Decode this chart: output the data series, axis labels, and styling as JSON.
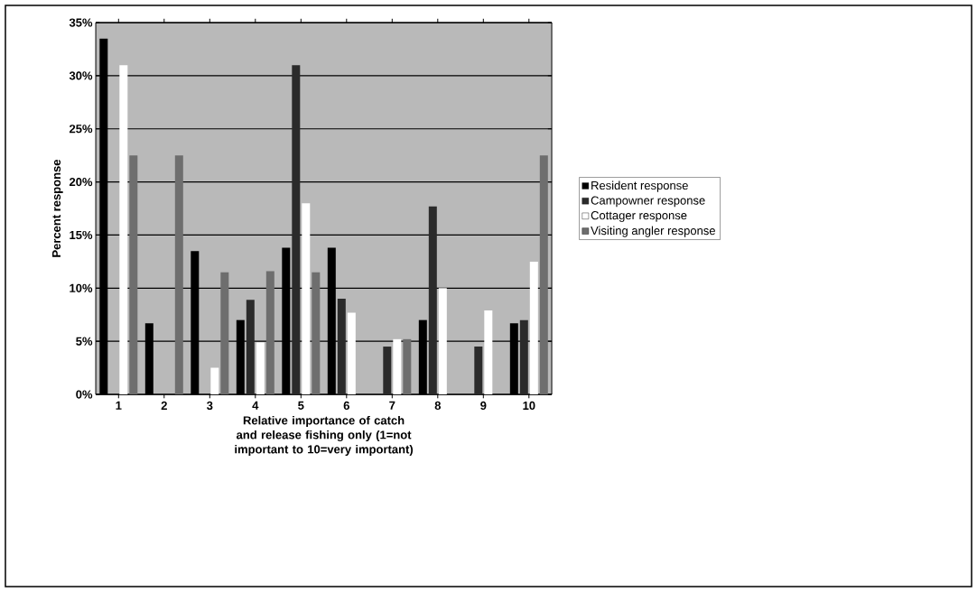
{
  "chart_data": {
    "type": "bar",
    "categories": [
      "1",
      "2",
      "3",
      "4",
      "5",
      "6",
      "7",
      "8",
      "9",
      "10"
    ],
    "series": [
      {
        "name": "Resident response",
        "color": "#000000",
        "values": [
          33.5,
          6.7,
          13.5,
          7.0,
          13.8,
          13.8,
          0,
          7.0,
          0,
          6.7
        ]
      },
      {
        "name": "Campowner response",
        "color": "#2b2b2b",
        "values": [
          0,
          0,
          0,
          8.9,
          31.0,
          9.0,
          4.5,
          17.7,
          4.5,
          7.0
        ]
      },
      {
        "name": "Cottager response",
        "color": "#ffffff",
        "values": [
          31.0,
          0,
          2.5,
          4.9,
          18.0,
          7.7,
          5.2,
          10.0,
          7.9,
          12.5
        ]
      },
      {
        "name": "Visiting angler response",
        "color": "#6e6e6e",
        "values": [
          22.5,
          22.5,
          11.5,
          11.6,
          11.5,
          0,
          5.2,
          0,
          0,
          22.5
        ]
      }
    ],
    "xlabel": "Relative importance of catch and release fishing only (1=not important to 10=very important)",
    "ylabel": "Percent response",
    "ylim": [
      0,
      35
    ],
    "yticks": [
      {
        "value": 0,
        "label": "0%"
      },
      {
        "value": 5,
        "label": "5%"
      },
      {
        "value": 10,
        "label": "10%"
      },
      {
        "value": 15,
        "label": "15%"
      },
      {
        "value": 20,
        "label": "20%"
      },
      {
        "value": 25,
        "label": "25%"
      },
      {
        "value": 30,
        "label": "30%"
      },
      {
        "value": 35,
        "label": "35%"
      }
    ],
    "grid": "y",
    "legend": "right"
  }
}
